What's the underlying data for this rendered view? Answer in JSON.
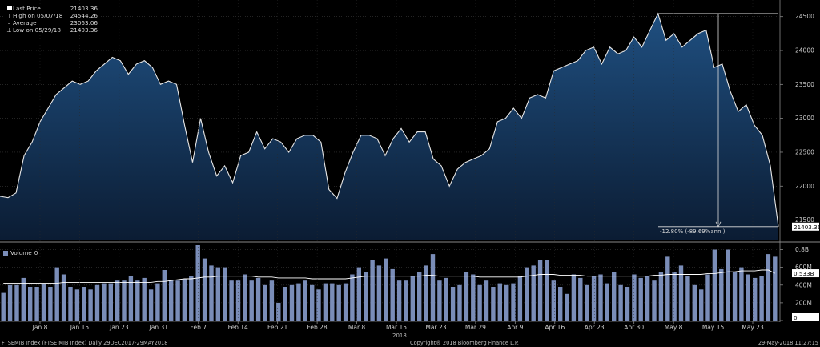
{
  "legend": {
    "rows": [
      {
        "marker": "square",
        "label": "Last Price",
        "value": "21403.36"
      },
      {
        "marker": "high",
        "label": "High on 05/07/18",
        "value": "24544.26"
      },
      {
        "marker": "avg",
        "label": "Average",
        "value": "23063.06"
      },
      {
        "marker": "low",
        "label": "Low on 05/29/18",
        "value": "21403.36"
      }
    ]
  },
  "annotation": "-12.80% (-89.69%ann.)",
  "last_price_tag": "21403.36",
  "volume": {
    "label": "Volume",
    "value": "0",
    "last_tag": "0.533B",
    "zero_tag": "0"
  },
  "footer": {
    "left": "FTSEMIB Index (FTSE MIB Index)  Daily 29DEC2017-29MAY2018",
    "center": "Copyright® 2018 Bloomberg Finance L.P.",
    "right": "29-May-2018 11:27:15"
  },
  "colors": {
    "background": "#000000",
    "price_line": "#e6e6e6",
    "price_fill_top": "#1f4f80",
    "price_fill_bottom": "#0b1c33",
    "volume_bar": "#7a8db8",
    "volume_avg_line": "#ffffff",
    "grid": "#3a3a3a",
    "tag_bg": "#ffffff",
    "tag_text": "#000000"
  },
  "chart_data": [
    {
      "type": "area",
      "x_tick_labels": [
        "Jan 8",
        "Jan 15",
        "Jan 23",
        "Jan 31",
        "Feb 7",
        "Feb 14",
        "Feb 21",
        "Feb 28",
        "Mar 8",
        "Mar 15",
        "Mar 23",
        "Mar 29",
        "Apr 9",
        "Apr 16",
        "Apr 23",
        "Apr 30",
        "May 8",
        "May 15",
        "May 23"
      ],
      "x_axis_year": "2018",
      "y_tick_labels": [
        "21500",
        "22000",
        "22500",
        "23000",
        "23500",
        "24000",
        "24500"
      ],
      "ylim": [
        21200,
        24650
      ],
      "grid": true,
      "series": [
        {
          "name": "Last Price",
          "values": [
            21850,
            21830,
            21900,
            22450,
            22650,
            22950,
            23150,
            23350,
            23450,
            23550,
            23500,
            23550,
            23700,
            23800,
            23900,
            23850,
            23650,
            23800,
            23850,
            23750,
            23500,
            23550,
            23500,
            22900,
            22350,
            23000,
            22500,
            22150,
            22300,
            22050,
            22450,
            22500,
            22800,
            22550,
            22700,
            22650,
            22500,
            22700,
            22750,
            22750,
            22650,
            21950,
            21820,
            22200,
            22500,
            22750,
            22750,
            22700,
            22450,
            22700,
            22850,
            22650,
            22800,
            22800,
            22400,
            22300,
            22000,
            22250,
            22350,
            22400,
            22450,
            22550,
            22950,
            23000,
            23150,
            23000,
            23300,
            23350,
            23300,
            23700,
            23750,
            23800,
            23850,
            24000,
            24050,
            23800,
            24050,
            23950,
            24000,
            24200,
            24050,
            24300,
            24544,
            24150,
            24250,
            24050,
            24150,
            24250,
            24300,
            23750,
            23800,
            23400,
            23100,
            23200,
            22900,
            22750,
            22300,
            21403
          ]
        }
      ],
      "annotations": {
        "high": 24544.26,
        "low": 21403.36,
        "change_label": "-12.80% (-89.69%ann.)"
      }
    },
    {
      "type": "bar",
      "y_tick_labels": [
        "0",
        "200M",
        "400M",
        "600M",
        "0.8B"
      ],
      "ylim": [
        0,
        0.85
      ],
      "series": [
        {
          "name": "Volume",
          "values": [
            0.32,
            0.4,
            0.4,
            0.48,
            0.38,
            0.38,
            0.42,
            0.38,
            0.6,
            0.52,
            0.38,
            0.35,
            0.38,
            0.35,
            0.4,
            0.42,
            0.42,
            0.45,
            0.45,
            0.5,
            0.45,
            0.48,
            0.35,
            0.42,
            0.57,
            0.45,
            0.45,
            0.47,
            0.5,
            0.85,
            0.7,
            0.62,
            0.6,
            0.6,
            0.45,
            0.45,
            0.52,
            0.45,
            0.48,
            0.4,
            0.45,
            0.2,
            0.38,
            0.4,
            0.42,
            0.45,
            0.4,
            0.35,
            0.42,
            0.42,
            0.4,
            0.42,
            0.52,
            0.6,
            0.55,
            0.68,
            0.62,
            0.7,
            0.58,
            0.45,
            0.45,
            0.5,
            0.55,
            0.62,
            0.75,
            0.45,
            0.48,
            0.38,
            0.4,
            0.55,
            0.52,
            0.4,
            0.45,
            0.38,
            0.42,
            0.4,
            0.42,
            0.5,
            0.6,
            0.62,
            0.68,
            0.68,
            0.45,
            0.38,
            0.3,
            0.52,
            0.48,
            0.4,
            0.5,
            0.52,
            0.42,
            0.55,
            0.4,
            0.38,
            0.52,
            0.48,
            0.5,
            0.45,
            0.55,
            0.72,
            0.55,
            0.62,
            0.5,
            0.4,
            0.35,
            0.52,
            0.8,
            0.58,
            0.8,
            0.55,
            0.6,
            0.52,
            0.48,
            0.5,
            0.75,
            0.72
          ]
        },
        {
          "name": "Average",
          "values": [
            0.42,
            0.42,
            0.42,
            0.42,
            0.42,
            0.42,
            0.42,
            0.42,
            0.42,
            0.43,
            0.43,
            0.43,
            0.43,
            0.43,
            0.43,
            0.43,
            0.43,
            0.43,
            0.43,
            0.43,
            0.43,
            0.43,
            0.43,
            0.44,
            0.44,
            0.45,
            0.46,
            0.47,
            0.47,
            0.48,
            0.49,
            0.49,
            0.5,
            0.5,
            0.5,
            0.5,
            0.5,
            0.5,
            0.49,
            0.49,
            0.49,
            0.48,
            0.48,
            0.48,
            0.48,
            0.48,
            0.47,
            0.47,
            0.47,
            0.47,
            0.47,
            0.47,
            0.48,
            0.49,
            0.5,
            0.5,
            0.5,
            0.5,
            0.5,
            0.5,
            0.5,
            0.5,
            0.5,
            0.51,
            0.51,
            0.5,
            0.5,
            0.5,
            0.5,
            0.5,
            0.5,
            0.49,
            0.49,
            0.49,
            0.49,
            0.49,
            0.49,
            0.49,
            0.5,
            0.51,
            0.52,
            0.52,
            0.52,
            0.51,
            0.51,
            0.51,
            0.51,
            0.5,
            0.5,
            0.5,
            0.5,
            0.5,
            0.5,
            0.5,
            0.5,
            0.5,
            0.5,
            0.51,
            0.51,
            0.52,
            0.52,
            0.52,
            0.52,
            0.52,
            0.52,
            0.53,
            0.53,
            0.54,
            0.55,
            0.55,
            0.56,
            0.56,
            0.56,
            0.57,
            0.57,
            0.533
          ]
        }
      ]
    }
  ]
}
